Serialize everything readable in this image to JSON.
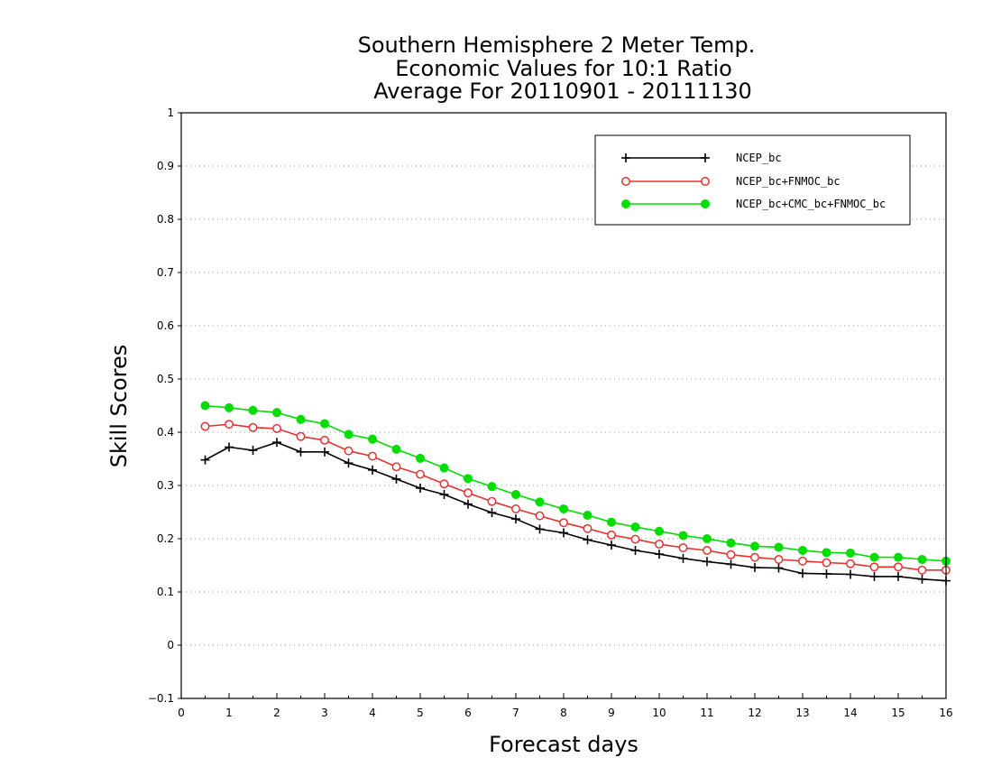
{
  "chart_data": {
    "type": "line",
    "title_lines": [
      "Southern Hemisphere 2 Meter Temp.",
      "Economic Values for 10:1 Ratio",
      "Average For 20110901 - 20111130"
    ],
    "xlabel": "Forecast days",
    "ylabel": "Skill Scores",
    "xlim": [
      0,
      16
    ],
    "ylim": [
      -0.1,
      1
    ],
    "x_ticks": [
      "0",
      "1",
      "2",
      "3",
      "4",
      "5",
      "6",
      "7",
      "8",
      "9",
      "10",
      "11",
      "12",
      "13",
      "14",
      "15",
      "16"
    ],
    "y_ticks": [
      "−0.1",
      "0",
      "0.1",
      "0.2",
      "0.3",
      "0.4",
      "0.5",
      "0.6",
      "0.7",
      "0.8",
      "0.9",
      "1"
    ],
    "grid": "horizontal dotted",
    "legend_position": "top-right",
    "x": [
      0.5,
      1.0,
      1.5,
      2.0,
      2.5,
      3.0,
      3.5,
      4.0,
      4.5,
      5.0,
      5.5,
      6.0,
      6.5,
      7.0,
      7.5,
      8.0,
      8.5,
      9.0,
      9.5,
      10.0,
      10.5,
      11.0,
      11.5,
      12.0,
      12.5,
      13.0,
      13.5,
      14.0,
      14.5,
      15.0,
      15.5,
      16.0
    ],
    "series": [
      {
        "name": "NCEP_bc",
        "color": "#000000",
        "marker": "plus",
        "values": [
          0.348,
          0.372,
          0.366,
          0.381,
          0.363,
          0.363,
          0.342,
          0.329,
          0.312,
          0.295,
          0.283,
          0.265,
          0.249,
          0.237,
          0.218,
          0.211,
          0.198,
          0.188,
          0.178,
          0.171,
          0.163,
          0.157,
          0.152,
          0.146,
          0.145,
          0.135,
          0.134,
          0.133,
          0.129,
          0.129,
          0.124,
          0.121
        ]
      },
      {
        "name": "NCEP_bc+FNMOC_bc",
        "color": "#e83030",
        "marker": "open-circle",
        "values": [
          0.411,
          0.415,
          0.409,
          0.407,
          0.392,
          0.385,
          0.365,
          0.355,
          0.335,
          0.321,
          0.303,
          0.286,
          0.27,
          0.256,
          0.243,
          0.23,
          0.219,
          0.207,
          0.199,
          0.19,
          0.183,
          0.178,
          0.17,
          0.165,
          0.161,
          0.158,
          0.155,
          0.153,
          0.147,
          0.147,
          0.141,
          0.141
        ]
      },
      {
        "name": "NCEP_bc+CMC_bc+FNMOC_bc",
        "color": "#00dd00",
        "marker": "filled-circle",
        "values": [
          0.45,
          0.446,
          0.441,
          0.437,
          0.424,
          0.416,
          0.396,
          0.387,
          0.368,
          0.351,
          0.333,
          0.313,
          0.298,
          0.283,
          0.269,
          0.256,
          0.244,
          0.231,
          0.222,
          0.214,
          0.206,
          0.2,
          0.192,
          0.186,
          0.184,
          0.178,
          0.174,
          0.173,
          0.165,
          0.165,
          0.161,
          0.158
        ]
      }
    ]
  }
}
